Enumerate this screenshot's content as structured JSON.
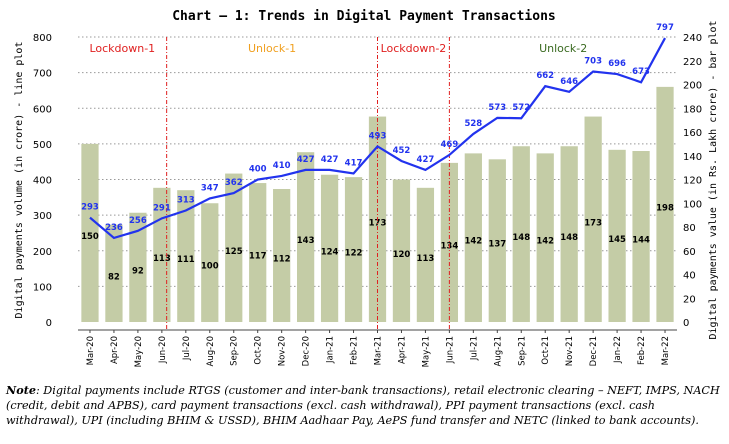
{
  "chart_data": {
    "type": "bar+line",
    "title": "Chart – 1: Trends in Digital Payment Transactions",
    "categories": [
      "Mar-20",
      "Apr-20",
      "May-20",
      "Jun-20",
      "Jul-20",
      "Aug-20",
      "Sep-20",
      "Oct-20",
      "Nov-20",
      "Dec-20",
      "Jan-21",
      "Feb-21",
      "Mar-21",
      "Apr-21",
      "May-21",
      "Jun-21",
      "Jul-21",
      "Aug-21",
      "Sep-21",
      "Oct-21",
      "Nov-21",
      "Dec-21",
      "Jan-22",
      "Feb-22",
      "Mar-22"
    ],
    "series": [
      {
        "name": "Digital payments volume (in crore)",
        "type": "line",
        "axis": "left",
        "color": "#2233ee",
        "values": [
          293,
          236,
          256,
          291,
          313,
          347,
          362,
          400,
          410,
          427,
          427,
          417,
          493,
          452,
          427,
          469,
          528,
          573,
          572,
          662,
          646,
          703,
          696,
          673,
          797
        ]
      },
      {
        "name": "Digital payments value (in Rs. Lakh crore)",
        "type": "bar",
        "axis": "right",
        "color": "#c4cca6",
        "values": [
          150,
          82,
          92,
          113,
          111,
          100,
          125,
          117,
          112,
          143,
          124,
          122,
          173,
          120,
          113,
          134,
          142,
          137,
          148,
          142,
          148,
          173,
          145,
          144,
          198
        ]
      }
    ],
    "ylabel": "Digital payments volume (in crore) - line plot",
    "y2label": "Digital payments value (in Rs. Lakh crore) - bar plot",
    "ylim": [
      0,
      800
    ],
    "yticks": [
      0,
      100,
      200,
      300,
      400,
      500,
      600,
      700,
      800
    ],
    "y2lim": [
      0,
      240
    ],
    "y2ticks": [
      0,
      20,
      40,
      60,
      80,
      100,
      120,
      140,
      160,
      180,
      200,
      220,
      240
    ],
    "grid": "horizontal dotted",
    "phases": [
      {
        "label": "Lockdown-1",
        "color": "#e02020"
      },
      {
        "label": "Unlock-1",
        "color": "#f0a020"
      },
      {
        "label": "Lockdown-2",
        "color": "#e02020"
      },
      {
        "label": "Unlock-2",
        "color": "#3a6a20"
      }
    ]
  },
  "note": {
    "label": "Note",
    "text": ": Digital payments include RTGS (customer and inter-bank transactions), retail electronic clearing – NEFT, IMPS, NACH (credit, debit and APBS), card payment transactions (excl. cash withdrawal), PPI payment transactions (excl. cash withdrawal), UPI (including BHIM & USSD), BHIM Aadhaar Pay, AePS fund transfer and NETC (linked to bank accounts)."
  }
}
